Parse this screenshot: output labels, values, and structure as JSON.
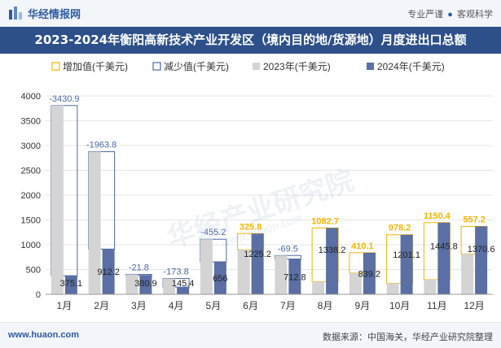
{
  "brand": {
    "name": "华经情报网",
    "tagline_left": "专业严谨",
    "tagline_right": "客观科学"
  },
  "footer": {
    "url": "www.huaon.com",
    "source": "数据来源：中国海关，华经产业研究院整理"
  },
  "watermark": {
    "main": "华经产业研究院",
    "sub": "www.huaon.com"
  },
  "colors": {
    "increase": "#f5b400",
    "decrease": "#4a6aa6",
    "y2023": "#d4d4d4",
    "y2024": "#5a6fa3",
    "title_bg": "#2d4f8a"
  },
  "chart_data": {
    "type": "bar",
    "title": "2023-2024年衡阳高新技术产业开发区（境内目的地/货源地）月度进出口总额",
    "categories": [
      "1月",
      "2月",
      "3月",
      "4月",
      "5月",
      "6月",
      "7月",
      "8月",
      "9月",
      "10月",
      "11月",
      "12月"
    ],
    "series": [
      {
        "name": "2023年(千美元)",
        "values": [
          3806.0,
          2876.0,
          402.7,
          319.2,
          1111.2,
          899.4,
          782.3,
          255.5,
          429.1,
          222.9,
          295.4,
          813.4
        ]
      },
      {
        "name": "2024年(千美元)",
        "values": [
          375.1,
          912.2,
          380.9,
          145.4,
          656.0,
          1225.2,
          712.8,
          1338.2,
          839.2,
          1201.1,
          1445.8,
          1370.6
        ]
      }
    ],
    "change": [
      "-3430.9",
      "-1963.8",
      "-21.8",
      "-173.8",
      "-455.2",
      "325.8",
      "-69.5",
      "1082.7",
      "410.1",
      "978.2",
      "1150.4",
      "557.2"
    ],
    "legend": [
      "增加值(千美元)",
      "减少值(千美元)",
      "2023年(千美元)",
      "2024年(千美元)"
    ],
    "legend_position": "top",
    "ylim": [
      0,
      4000
    ],
    "yticks": [
      "0",
      "500",
      "1000",
      "1500",
      "2000",
      "2500",
      "3000",
      "3500",
      "4000"
    ],
    "grid": true
  }
}
